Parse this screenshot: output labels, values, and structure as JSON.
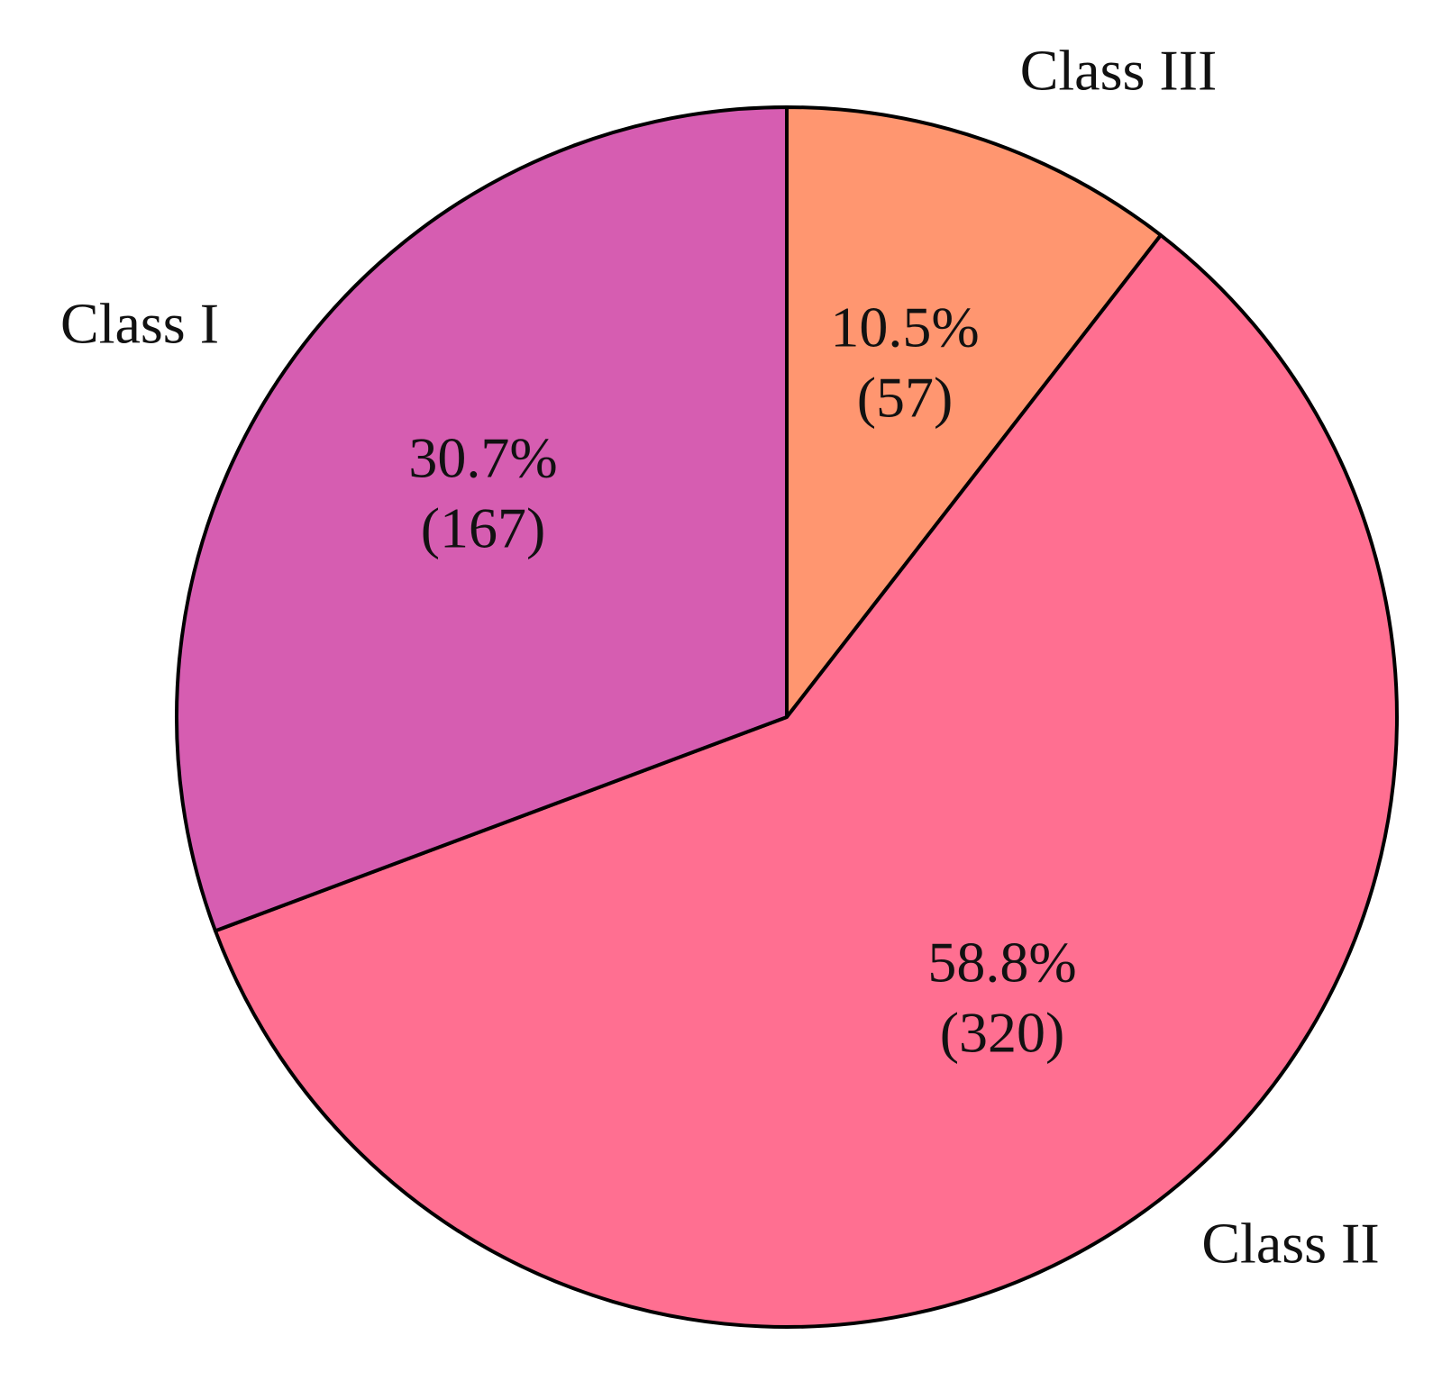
{
  "chart_data": {
    "type": "pie",
    "categories": [
      "Class III",
      "Class II",
      "Class I"
    ],
    "values": [
      10.5,
      58.8,
      30.7
    ],
    "value_labels": [
      "10.5%",
      "58.8%",
      "30.7%"
    ],
    "counts": [
      57,
      320,
      167
    ],
    "count_labels": [
      "(57)",
      "(320)",
      "(167)"
    ],
    "colors": [
      "#FF9670",
      "#FF6F91",
      "#D65DB1"
    ]
  }
}
